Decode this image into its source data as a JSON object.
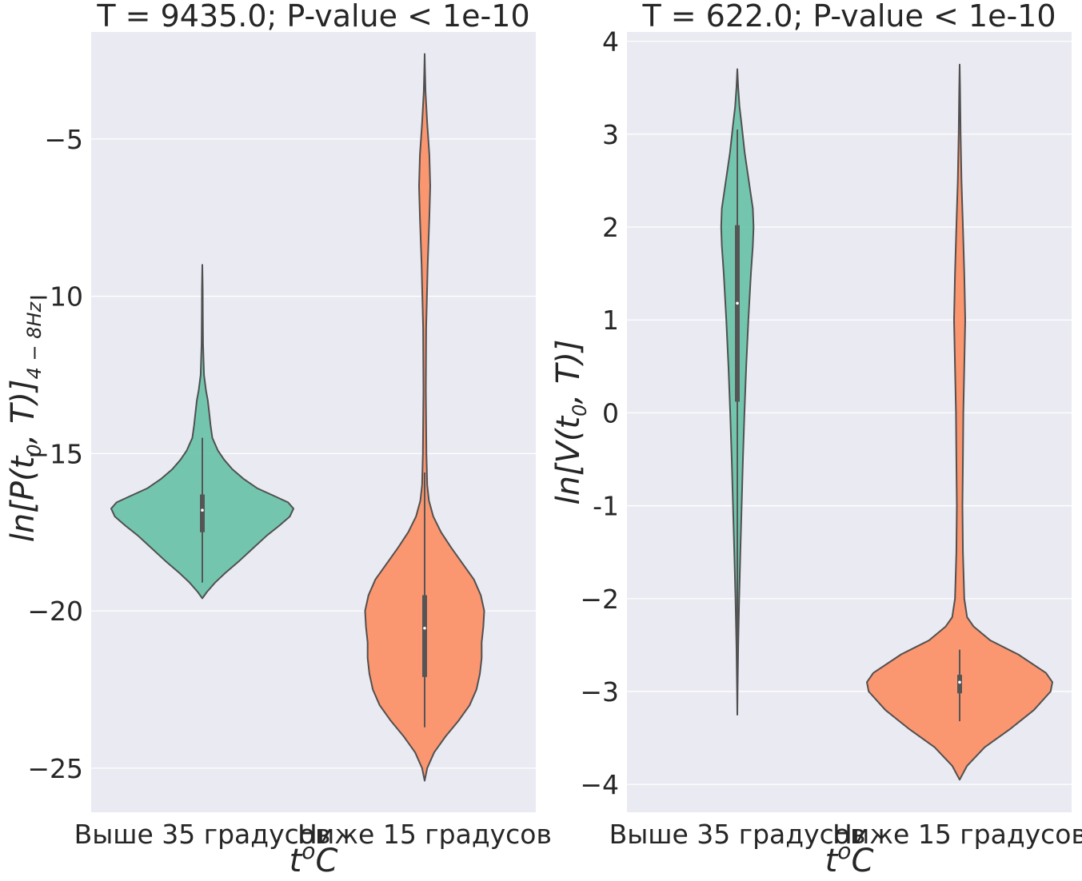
{
  "chart_data": [
    {
      "type": "violin",
      "title": "T = 9435.0; P-value < 1e-10",
      "xlabel": "t^oC",
      "ylabel": {
        "main": "ln[P(t",
        "sub0": "0",
        "mid": ", T)]",
        "sub1": "4 − 8Hz"
      },
      "categories": [
        "Выше 35 градусов",
        "Ниже 15 градусов"
      ],
      "ylim": [
        -26.4,
        -1.6
      ],
      "yticks": [
        -5,
        -10,
        -15,
        -20,
        -25
      ],
      "ytick_labels": [
        "−5",
        "−10",
        "−15",
        "−20",
        "−25"
      ],
      "grid": true,
      "series": [
        {
          "category": "Выше 35 градусов",
          "color": "#66c2a5",
          "kde_min": -19.6,
          "kde_max": -9.0,
          "median": -16.8,
          "q1": -17.5,
          "q3": -16.3,
          "whisker_low": -19.1,
          "whisker_high": -14.5,
          "density": [
            [
              -19.6,
              0.0
            ],
            [
              -19.4,
              0.05
            ],
            [
              -19.1,
              0.14
            ],
            [
              -18.8,
              0.25
            ],
            [
              -18.4,
              0.41
            ],
            [
              -18.0,
              0.56
            ],
            [
              -17.6,
              0.71
            ],
            [
              -17.3,
              0.84
            ],
            [
              -17.0,
              0.96
            ],
            [
              -16.75,
              1.0
            ],
            [
              -16.55,
              0.94
            ],
            [
              -16.35,
              0.79
            ],
            [
              -16.1,
              0.6
            ],
            [
              -15.8,
              0.45
            ],
            [
              -15.5,
              0.33
            ],
            [
              -15.2,
              0.24
            ],
            [
              -14.9,
              0.17
            ],
            [
              -14.5,
              0.11
            ],
            [
              -14.1,
              0.09
            ],
            [
              -13.7,
              0.075
            ],
            [
              -13.3,
              0.06
            ],
            [
              -13.0,
              0.04
            ],
            [
              -12.5,
              0.018
            ],
            [
              -11.5,
              0.008
            ],
            [
              -10.5,
              0.005
            ],
            [
              -9.8,
              0.004
            ],
            [
              -9.3,
              0.002
            ],
            [
              -9.0,
              0.0
            ]
          ]
        },
        {
          "category": "Ниже 15 градусов",
          "color": "#fc8d62",
          "kde_min": -25.4,
          "kde_max": -2.3,
          "median": -20.55,
          "q1": -22.1,
          "q3": -19.5,
          "whisker_low": -23.7,
          "whisker_high": -15.6,
          "density": [
            [
              -25.4,
              0.0
            ],
            [
              -25.0,
              0.03
            ],
            [
              -24.5,
              0.11
            ],
            [
              -24.0,
              0.24
            ],
            [
              -23.5,
              0.39
            ],
            [
              -23.0,
              0.52
            ],
            [
              -22.5,
              0.6
            ],
            [
              -22.0,
              0.64
            ],
            [
              -21.5,
              0.66
            ],
            [
              -21.0,
              0.66
            ],
            [
              -20.5,
              0.68
            ],
            [
              -20.0,
              0.69
            ],
            [
              -19.5,
              0.65
            ],
            [
              -19.0,
              0.57
            ],
            [
              -18.5,
              0.44
            ],
            [
              -18.0,
              0.31
            ],
            [
              -17.5,
              0.19
            ],
            [
              -17.0,
              0.1
            ],
            [
              -16.5,
              0.05
            ],
            [
              -16.0,
              0.03
            ],
            [
              -15.0,
              0.02
            ],
            [
              -13.0,
              0.014
            ],
            [
              -11.0,
              0.018
            ],
            [
              -9.0,
              0.035
            ],
            [
              -7.5,
              0.055
            ],
            [
              -6.5,
              0.065
            ],
            [
              -5.5,
              0.055
            ],
            [
              -4.5,
              0.03
            ],
            [
              -3.5,
              0.01
            ],
            [
              -2.8,
              0.004
            ],
            [
              -2.3,
              0.0
            ]
          ]
        }
      ]
    },
    {
      "type": "violin",
      "title": "T = 622.0; P-value < 1e-10",
      "xlabel": "t^oC",
      "ylabel": {
        "main": "ln[V(t",
        "sub0": "0",
        "mid": ", T)]"
      },
      "categories": [
        "Выше 35 градусов",
        "Ниже 15 градусов"
      ],
      "ylim": [
        -4.3,
        4.1
      ],
      "yticks": [
        4,
        3,
        2,
        1,
        0,
        -1,
        -2,
        -3,
        -4
      ],
      "ytick_labels": [
        "4",
        "3",
        "2",
        "1",
        "0",
        "-1",
        "−2",
        "−3",
        "−4"
      ],
      "grid": true,
      "series": [
        {
          "category": "Выше 35 градусов",
          "color": "#66c2a5",
          "kde_min": -3.25,
          "kde_max": 3.7,
          "median": 1.18,
          "q1": 0.12,
          "q3": 2.02,
          "whisker_low": -2.6,
          "whisker_high": 3.05,
          "density": [
            [
              -3.25,
              0.0
            ],
            [
              -3.0,
              0.01
            ],
            [
              -2.5,
              0.04
            ],
            [
              -2.0,
              0.085
            ],
            [
              -1.5,
              0.14
            ],
            [
              -1.0,
              0.2
            ],
            [
              -0.5,
              0.26
            ],
            [
              0.0,
              0.33
            ],
            [
              0.5,
              0.41
            ],
            [
              1.0,
              0.51
            ],
            [
              1.5,
              0.63
            ],
            [
              1.8,
              0.72
            ],
            [
              2.0,
              0.75
            ],
            [
              2.2,
              0.72
            ],
            [
              2.5,
              0.53
            ],
            [
              2.8,
              0.34
            ],
            [
              3.1,
              0.2
            ],
            [
              3.3,
              0.1
            ],
            [
              3.5,
              0.04
            ],
            [
              3.7,
              0.0
            ]
          ]
        },
        {
          "category": "Ниже 15 градусов",
          "color": "#fc8d62",
          "kde_min": -3.95,
          "kde_max": 3.75,
          "median": -2.9,
          "q1": -3.02,
          "q3": -2.82,
          "whisker_low": -3.32,
          "whisker_high": -2.55,
          "density": [
            [
              -3.95,
              0.0
            ],
            [
              -3.8,
              0.08
            ],
            [
              -3.6,
              0.27
            ],
            [
              -3.4,
              0.55
            ],
            [
              -3.2,
              0.8
            ],
            [
              -3.0,
              0.98
            ],
            [
              -2.9,
              1.0
            ],
            [
              -2.8,
              0.93
            ],
            [
              -2.6,
              0.63
            ],
            [
              -2.45,
              0.33
            ],
            [
              -2.3,
              0.15
            ],
            [
              -2.2,
              0.08
            ],
            [
              -2.0,
              0.05
            ],
            [
              -1.5,
              0.035
            ],
            [
              -1.0,
              0.03
            ],
            [
              -0.5,
              0.035
            ],
            [
              0.0,
              0.04
            ],
            [
              0.5,
              0.05
            ],
            [
              1.0,
              0.06
            ],
            [
              1.5,
              0.05
            ],
            [
              2.0,
              0.035
            ],
            [
              2.5,
              0.02
            ],
            [
              3.0,
              0.01
            ],
            [
              3.5,
              0.004
            ],
            [
              3.75,
              0.0
            ]
          ]
        }
      ]
    }
  ]
}
